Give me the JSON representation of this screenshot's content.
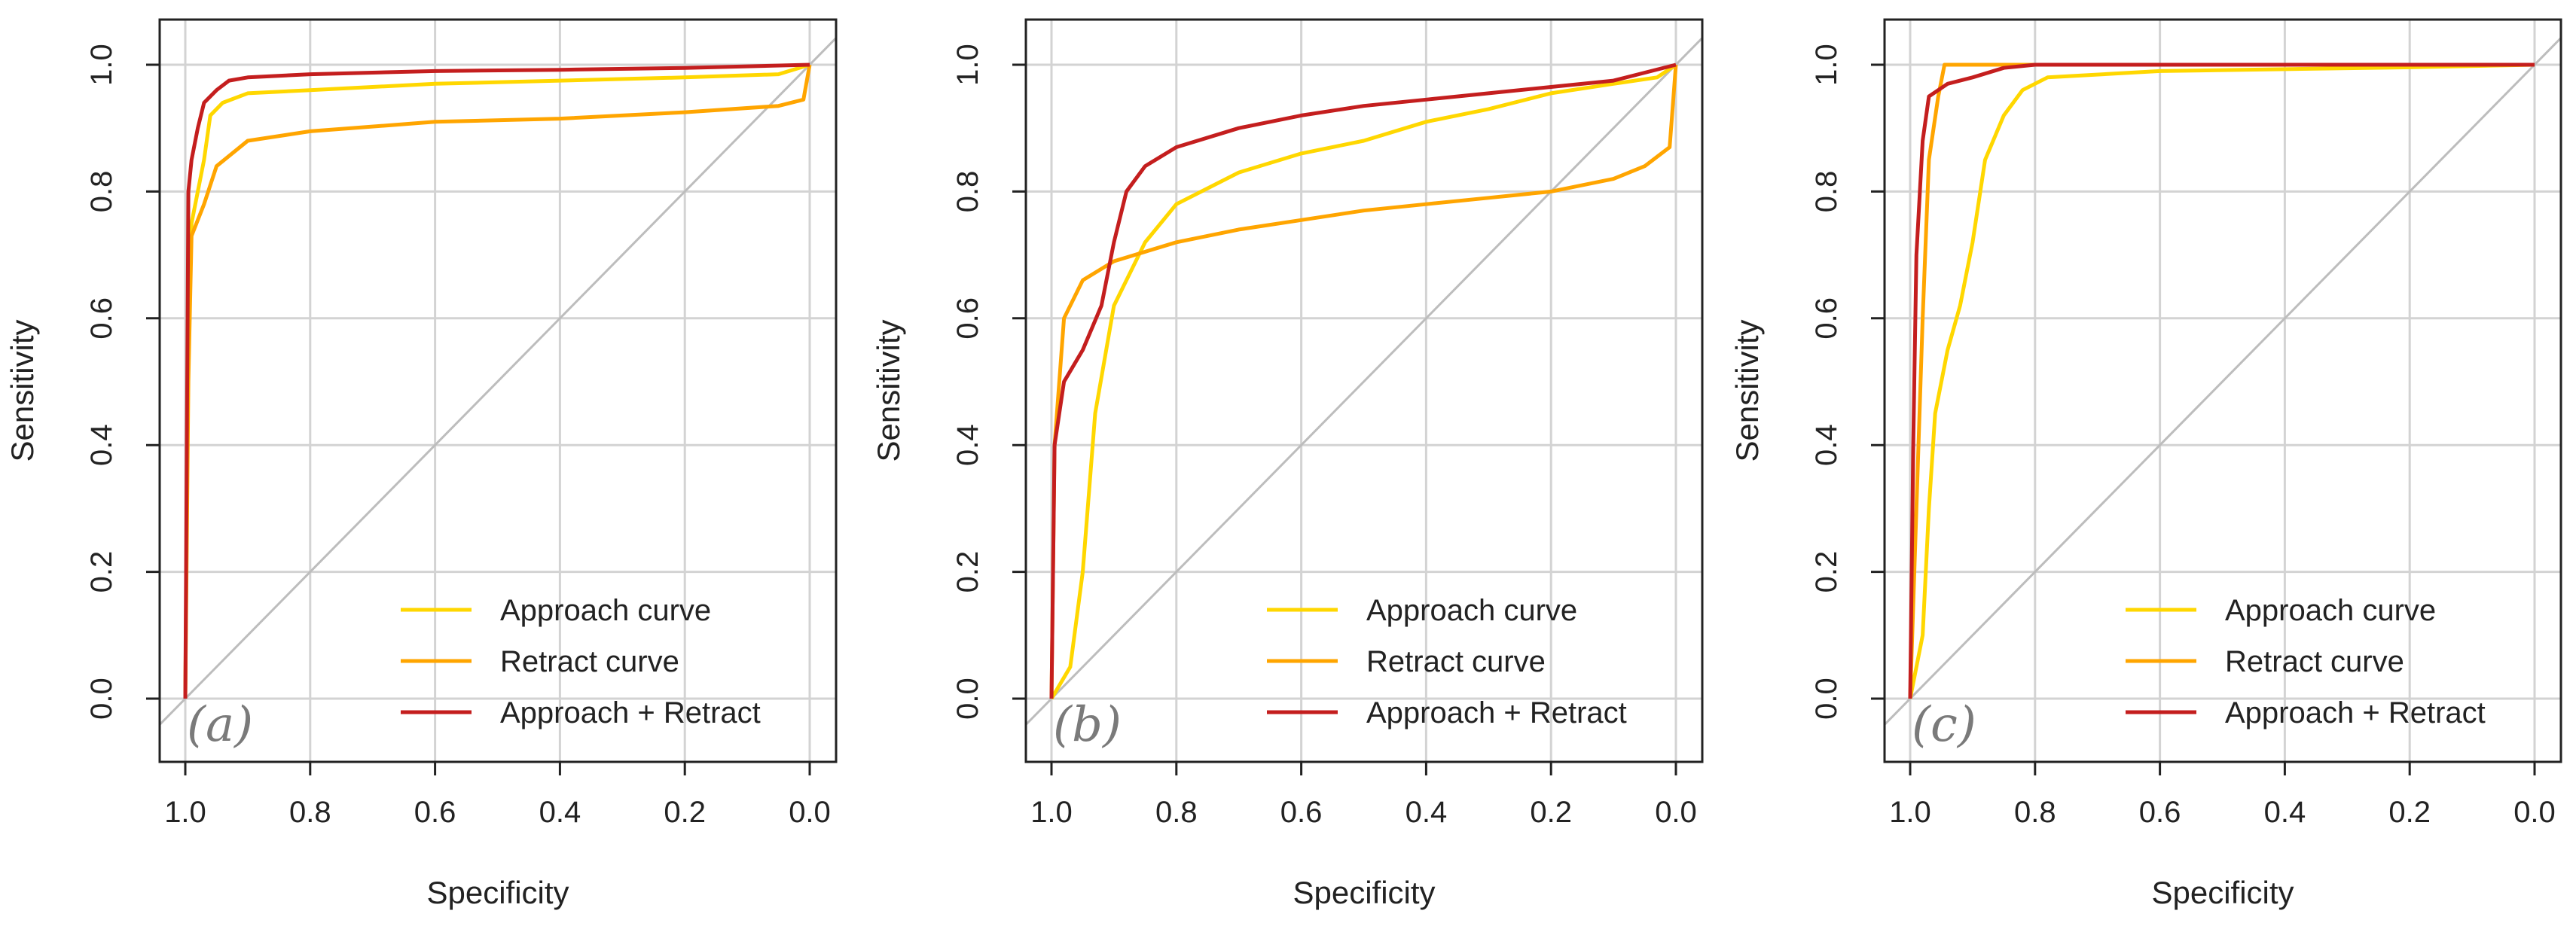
{
  "chart_data": [
    {
      "type": "line",
      "panel_label": "(a)",
      "xlabel": "Specificity",
      "ylabel": "Sensitivity",
      "xlim": [
        1.0,
        0.0
      ],
      "ylim": [
        0.0,
        1.0
      ],
      "x_reversed": true,
      "xticks": [
        "1.0",
        "0.8",
        "0.6",
        "0.4",
        "0.2",
        "0.0"
      ],
      "yticks": [
        "0.0",
        "0.2",
        "0.4",
        "0.6",
        "0.8",
        "1.0"
      ],
      "grid": true,
      "legend_position": "bottom-right",
      "diagonal_reference": true,
      "series": [
        {
          "name": "Approach curve",
          "color": "#FFD700",
          "points": [
            [
              1.0,
              0.0
            ],
            [
              0.995,
              0.6
            ],
            [
              0.99,
              0.75
            ],
            [
              0.97,
              0.85
            ],
            [
              0.96,
              0.92
            ],
            [
              0.94,
              0.94
            ],
            [
              0.9,
              0.955
            ],
            [
              0.8,
              0.96
            ],
            [
              0.6,
              0.97
            ],
            [
              0.4,
              0.975
            ],
            [
              0.2,
              0.98
            ],
            [
              0.05,
              0.985
            ],
            [
              0.0,
              1.0
            ]
          ]
        },
        {
          "name": "Retract curve",
          "color": "#FFA500",
          "points": [
            [
              1.0,
              0.0
            ],
            [
              0.995,
              0.5
            ],
            [
              0.99,
              0.73
            ],
            [
              0.97,
              0.78
            ],
            [
              0.95,
              0.84
            ],
            [
              0.9,
              0.88
            ],
            [
              0.8,
              0.895
            ],
            [
              0.6,
              0.91
            ],
            [
              0.4,
              0.915
            ],
            [
              0.2,
              0.925
            ],
            [
              0.05,
              0.935
            ],
            [
              0.01,
              0.945
            ],
            [
              0.0,
              1.0
            ]
          ]
        },
        {
          "name": "Approach + Retract",
          "color": "#C41E1E",
          "points": [
            [
              1.0,
              0.0
            ],
            [
              0.995,
              0.8
            ],
            [
              0.99,
              0.85
            ],
            [
              0.98,
              0.9
            ],
            [
              0.97,
              0.94
            ],
            [
              0.95,
              0.96
            ],
            [
              0.93,
              0.975
            ],
            [
              0.9,
              0.98
            ],
            [
              0.8,
              0.985
            ],
            [
              0.6,
              0.99
            ],
            [
              0.4,
              0.992
            ],
            [
              0.2,
              0.995
            ],
            [
              0.0,
              1.0
            ]
          ]
        }
      ]
    },
    {
      "type": "line",
      "panel_label": "(b)",
      "xlabel": "Specificity",
      "ylabel": "Sensitivity",
      "xlim": [
        1.0,
        0.0
      ],
      "ylim": [
        0.0,
        1.0
      ],
      "x_reversed": true,
      "xticks": [
        "1.0",
        "0.8",
        "0.6",
        "0.4",
        "0.2",
        "0.0"
      ],
      "yticks": [
        "0.0",
        "0.2",
        "0.4",
        "0.6",
        "0.8",
        "1.0"
      ],
      "grid": true,
      "legend_position": "bottom-right",
      "diagonal_reference": true,
      "series": [
        {
          "name": "Approach curve",
          "color": "#FFD700",
          "points": [
            [
              1.0,
              0.0
            ],
            [
              0.97,
              0.05
            ],
            [
              0.95,
              0.2
            ],
            [
              0.93,
              0.45
            ],
            [
              0.9,
              0.62
            ],
            [
              0.85,
              0.72
            ],
            [
              0.8,
              0.78
            ],
            [
              0.7,
              0.83
            ],
            [
              0.6,
              0.86
            ],
            [
              0.5,
              0.88
            ],
            [
              0.4,
              0.91
            ],
            [
              0.3,
              0.93
            ],
            [
              0.2,
              0.955
            ],
            [
              0.1,
              0.97
            ],
            [
              0.03,
              0.98
            ],
            [
              0.0,
              1.0
            ]
          ]
        },
        {
          "name": "Retract curve",
          "color": "#FFA500",
          "points": [
            [
              1.0,
              0.0
            ],
            [
              0.995,
              0.4
            ],
            [
              0.98,
              0.6
            ],
            [
              0.95,
              0.66
            ],
            [
              0.9,
              0.69
            ],
            [
              0.8,
              0.72
            ],
            [
              0.7,
              0.74
            ],
            [
              0.6,
              0.755
            ],
            [
              0.5,
              0.77
            ],
            [
              0.4,
              0.78
            ],
            [
              0.3,
              0.79
            ],
            [
              0.2,
              0.8
            ],
            [
              0.1,
              0.82
            ],
            [
              0.05,
              0.84
            ],
            [
              0.01,
              0.87
            ],
            [
              0.0,
              1.0
            ]
          ]
        },
        {
          "name": "Approach + Retract",
          "color": "#C41E1E",
          "points": [
            [
              1.0,
              0.0
            ],
            [
              0.995,
              0.4
            ],
            [
              0.98,
              0.5
            ],
            [
              0.95,
              0.55
            ],
            [
              0.92,
              0.62
            ],
            [
              0.9,
              0.72
            ],
            [
              0.88,
              0.8
            ],
            [
              0.85,
              0.84
            ],
            [
              0.8,
              0.87
            ],
            [
              0.7,
              0.9
            ],
            [
              0.6,
              0.92
            ],
            [
              0.5,
              0.935
            ],
            [
              0.4,
              0.945
            ],
            [
              0.3,
              0.955
            ],
            [
              0.2,
              0.965
            ],
            [
              0.1,
              0.975
            ],
            [
              0.0,
              1.0
            ]
          ]
        }
      ]
    },
    {
      "type": "line",
      "panel_label": "(c)",
      "xlabel": "Specificity",
      "ylabel": "Sensitivity",
      "xlim": [
        1.0,
        0.0
      ],
      "ylim": [
        0.0,
        1.0
      ],
      "x_reversed": true,
      "xticks": [
        "1.0",
        "0.8",
        "0.6",
        "0.4",
        "0.2",
        "0.0"
      ],
      "yticks": [
        "0.0",
        "0.2",
        "0.4",
        "0.6",
        "0.8",
        "1.0"
      ],
      "grid": true,
      "legend_position": "bottom-right",
      "diagonal_reference": true,
      "series": [
        {
          "name": "Approach curve",
          "color": "#FFD700",
          "points": [
            [
              1.0,
              0.0
            ],
            [
              0.98,
              0.1
            ],
            [
              0.97,
              0.3
            ],
            [
              0.96,
              0.45
            ],
            [
              0.94,
              0.55
            ],
            [
              0.92,
              0.62
            ],
            [
              0.9,
              0.72
            ],
            [
              0.88,
              0.85
            ],
            [
              0.85,
              0.92
            ],
            [
              0.82,
              0.96
            ],
            [
              0.78,
              0.98
            ],
            [
              0.6,
              0.99
            ],
            [
              0.4,
              0.993
            ],
            [
              0.2,
              0.996
            ],
            [
              0.0,
              1.0
            ]
          ]
        },
        {
          "name": "Retract curve",
          "color": "#FFA500",
          "points": [
            [
              1.0,
              0.0
            ],
            [
              0.99,
              0.3
            ],
            [
              0.98,
              0.6
            ],
            [
              0.97,
              0.85
            ],
            [
              0.955,
              0.95
            ],
            [
              0.945,
              1.0
            ],
            [
              0.8,
              1.0
            ],
            [
              0.6,
              1.0
            ],
            [
              0.4,
              1.0
            ],
            [
              0.2,
              1.0
            ],
            [
              0.0,
              1.0
            ]
          ]
        },
        {
          "name": "Approach + Retract",
          "color": "#C41E1E",
          "points": [
            [
              1.0,
              0.0
            ],
            [
              0.995,
              0.4
            ],
            [
              0.99,
              0.7
            ],
            [
              0.98,
              0.88
            ],
            [
              0.97,
              0.95
            ],
            [
              0.94,
              0.97
            ],
            [
              0.9,
              0.98
            ],
            [
              0.85,
              0.995
            ],
            [
              0.8,
              1.0
            ],
            [
              0.6,
              1.0
            ],
            [
              0.4,
              1.0
            ],
            [
              0.2,
              1.0
            ],
            [
              0.0,
              1.0
            ]
          ]
        }
      ]
    }
  ]
}
